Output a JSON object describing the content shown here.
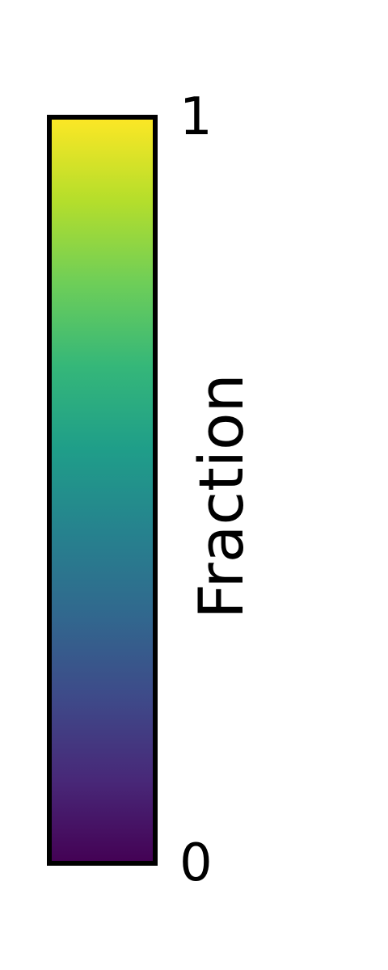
{
  "chart_data": {
    "type": "heatmap",
    "colormap": "viridis",
    "orientation": "vertical",
    "range": [
      0,
      1
    ],
    "ticks": [
      {
        "value": 0,
        "label": "0"
      },
      {
        "value": 1,
        "label": "1"
      }
    ],
    "label": "Fraction",
    "colors": [
      "#440154",
      "#482878",
      "#3e4a89",
      "#31688e",
      "#26828e",
      "#1f9e89",
      "#35b779",
      "#6ece58",
      "#b5de2b",
      "#fde725"
    ]
  }
}
